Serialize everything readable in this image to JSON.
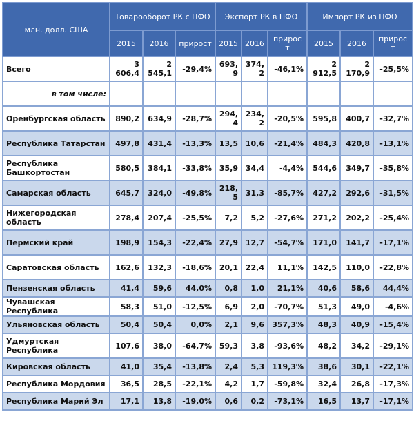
{
  "header": {
    "unit": "млн. долл. США",
    "groups": [
      "Товарооборот РК с ПФО",
      "Экспорт РК в ПФО",
      "Импорт РК из ПФО"
    ],
    "subcols": [
      "2015",
      "2016",
      "прирост",
      "2015",
      "2016",
      "прирост",
      "2015",
      "2016",
      "прирост"
    ]
  },
  "total": {
    "name": "Всего",
    "values": [
      "3 606,4",
      "2 545,1",
      "-29,4%",
      "693,9",
      "374,2",
      "-46,1%",
      "2 912,5",
      "2 170,9",
      "-25,5%"
    ]
  },
  "subheader": "в том числе:",
  "rows": [
    {
      "name": "Оренбургская область",
      "values": [
        "890,2",
        "634,9",
        "-28,7%",
        "294,4",
        "234,2",
        "-20,5%",
        "595,8",
        "400,7",
        "-32,7%"
      ]
    },
    {
      "name": "Республика Татарстан",
      "values": [
        "497,8",
        "431,4",
        "-13,3%",
        "13,5",
        "10,6",
        "-21,4%",
        "484,3",
        "420,8",
        "-13,1%"
      ]
    },
    {
      "name": "Республика Башкортостан",
      "values": [
        "580,5",
        "384,1",
        "-33,8%",
        "35,9",
        "34,4",
        "-4,4%",
        "544,6",
        "349,7",
        "-35,8%"
      ]
    },
    {
      "name": "Самарская область",
      "values": [
        "645,7",
        "324,0",
        "-49,8%",
        "218,5",
        "31,3",
        "-85,7%",
        "427,2",
        "292,6",
        "-31,5%"
      ]
    },
    {
      "name": "Нижегородская область",
      "values": [
        "278,4",
        "207,4",
        "-25,5%",
        "7,2",
        "5,2",
        "-27,6%",
        "271,2",
        "202,2",
        "-25,4%"
      ]
    },
    {
      "name": "Пермский край",
      "values": [
        "198,9",
        "154,3",
        "-22,4%",
        "27,9",
        "12,7",
        "-54,7%",
        "171,0",
        "141,7",
        "-17,1%"
      ]
    },
    {
      "name": "Саратовская область",
      "values": [
        "162,6",
        "132,3",
        "-18,6%",
        "20,1",
        "22,4",
        "11,1%",
        "142,5",
        "110,0",
        "-22,8%"
      ]
    },
    {
      "name": "Пензенская область",
      "values": [
        "41,4",
        "59,6",
        "44,0%",
        "0,8",
        "1,0",
        "21,1%",
        "40,6",
        "58,6",
        "44,4%"
      ]
    },
    {
      "name": "Чувашская Республика",
      "values": [
        "58,3",
        "51,0",
        "-12,5%",
        "6,9",
        "2,0",
        "-70,7%",
        "51,3",
        "49,0",
        "-4,6%"
      ]
    },
    {
      "name": "Ульяновская область",
      "values": [
        "50,4",
        "50,4",
        "0,0%",
        "2,1",
        "9,6",
        "357,3%",
        "48,3",
        "40,9",
        "-15,4%"
      ]
    },
    {
      "name": "Удмуртская Республика",
      "values": [
        "107,6",
        "38,0",
        "-64,7%",
        "59,3",
        "3,8",
        "-93,6%",
        "48,2",
        "34,2",
        "-29,1%"
      ]
    },
    {
      "name": "Кировская область",
      "values": [
        "41,0",
        "35,4",
        "-13,8%",
        "2,4",
        "5,3",
        "119,3%",
        "38,6",
        "30,1",
        "-22,1%"
      ]
    },
    {
      "name": "Республика Мордовия",
      "values": [
        "36,5",
        "28,5",
        "-22,1%",
        "4,2",
        "1,7",
        "-59,8%",
        "32,4",
        "26,8",
        "-17,3%"
      ]
    },
    {
      "name": "Республика Марий Эл",
      "values": [
        "17,1",
        "13,8",
        "-19,0%",
        "0,6",
        "0,2",
        "-73,1%",
        "16,5",
        "13,7",
        "-17,1%"
      ]
    }
  ]
}
